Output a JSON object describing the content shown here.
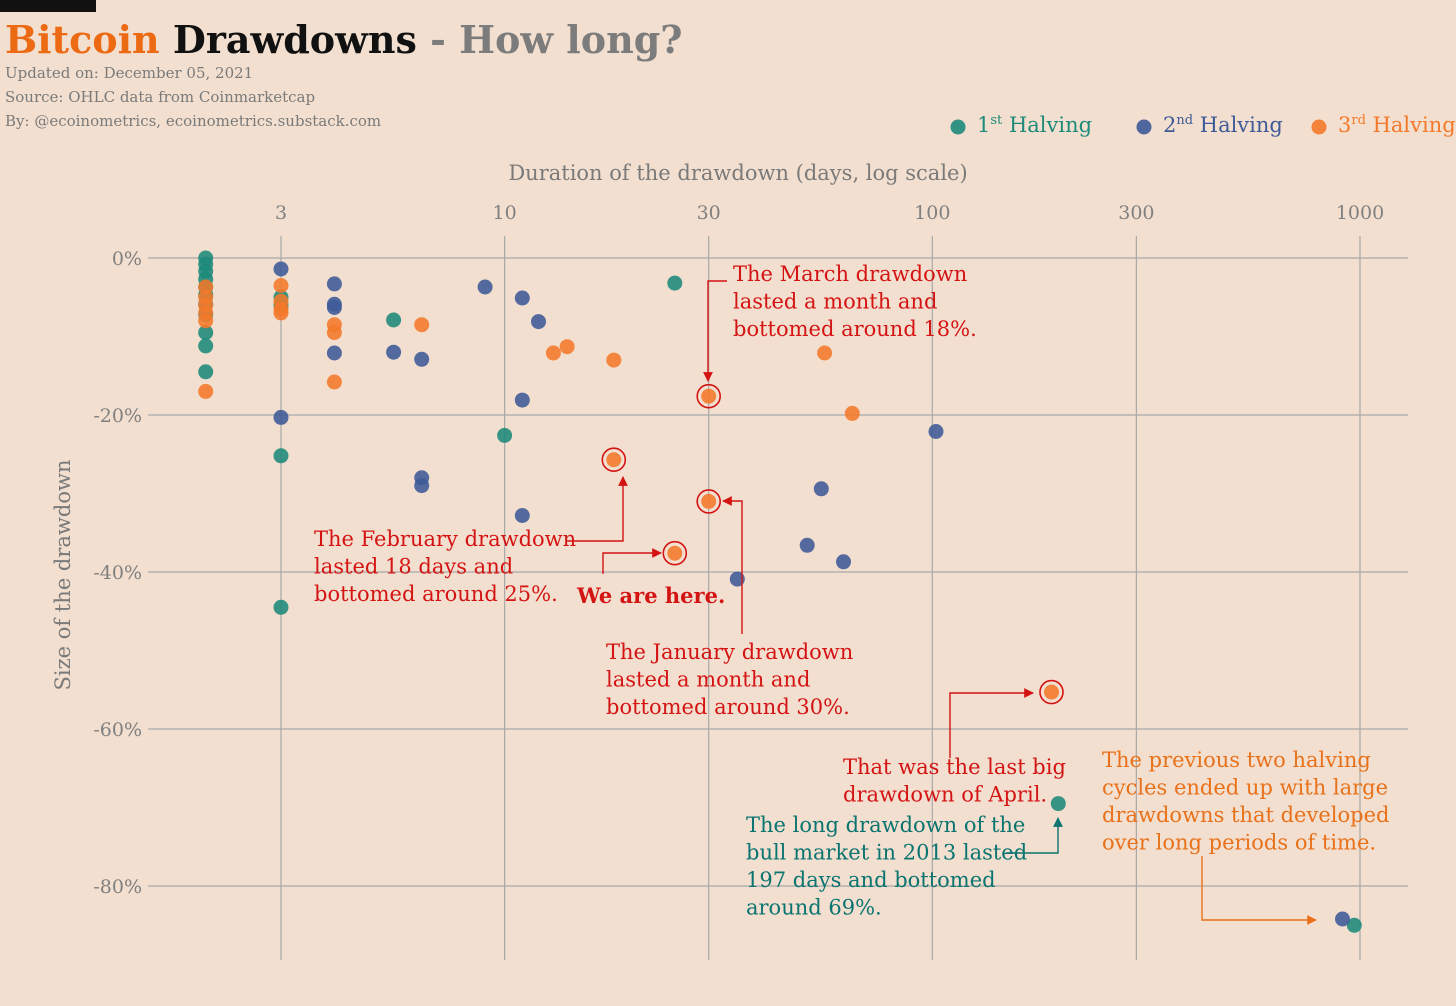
{
  "header": {
    "title_part1": "Bitcoin",
    "title_part2": "Drawdowns",
    "title_part3": "- How long?",
    "updated": "Updated on: December 05, 2021",
    "source": "Source: OHLC data from Coinmarketcap",
    "by": "By: @ecoinometrics, ecoinometrics.substack.com"
  },
  "colors": {
    "halving1": "#1d8a7a",
    "halving2": "#3e5a98",
    "halving3": "#f4792a",
    "annotation_red": "#d41313",
    "annotation_teal": "#0a7470",
    "annotation_orange": "#e8711a",
    "grid": "#a8a8a8",
    "background": "#f2dfcf"
  },
  "chart_data": {
    "type": "scatter",
    "title": "Bitcoin Drawdowns - How long?",
    "xlabel": "Duration of the drawdown (days, log scale)",
    "ylabel": "Size of the drawdown",
    "x_scale": "log",
    "x_ticks": [
      3,
      10,
      30,
      100,
      300,
      1000
    ],
    "x_tick_labels": [
      "3",
      "10",
      "30",
      "100",
      "300",
      "1000"
    ],
    "y_ticks": [
      0,
      -20,
      -40,
      -60,
      -80
    ],
    "y_tick_labels": [
      "0%",
      "-20%",
      "-40%",
      "-60%",
      "-80%"
    ],
    "xlim": [
      1.5,
      1300
    ],
    "ylim": [
      -89,
      5
    ],
    "grid": true,
    "legend_position": "top-right",
    "series": [
      {
        "name": "1st Halving",
        "legend_base": "1",
        "legend_sup": "st",
        "legend_rest": " Halving",
        "color_key": "halving1",
        "points": [
          [
            2,
            0
          ],
          [
            2,
            -0.8
          ],
          [
            2,
            -1.7
          ],
          [
            2,
            -2.7
          ],
          [
            2,
            -3.7
          ],
          [
            2,
            -4.7
          ],
          [
            2,
            -5.9
          ],
          [
            2,
            -7.2
          ],
          [
            2,
            -9.5
          ],
          [
            2,
            -11.2
          ],
          [
            2,
            -14.5
          ],
          [
            3,
            -5
          ],
          [
            3,
            -6
          ],
          [
            3,
            -25.2
          ],
          [
            3,
            -44.5
          ],
          [
            5.5,
            -7.9
          ],
          [
            10,
            -22.6
          ],
          [
            25,
            -3.2
          ],
          [
            197,
            -69.5
          ],
          [
            970,
            -85
          ]
        ]
      },
      {
        "name": "2nd Halving",
        "legend_base": "2",
        "legend_sup": "nd",
        "legend_rest": " Halving",
        "color_key": "halving2",
        "points": [
          [
            3,
            -1.4
          ],
          [
            3,
            -20.3
          ],
          [
            4,
            -3.3
          ],
          [
            4,
            -5.9
          ],
          [
            4,
            -6.3
          ],
          [
            4,
            -12.1
          ],
          [
            5.5,
            -12
          ],
          [
            6.4,
            -12.9
          ],
          [
            6.4,
            -28
          ],
          [
            6.4,
            -29
          ],
          [
            9,
            -3.7
          ],
          [
            11,
            -5.1
          ],
          [
            11,
            -18.1
          ],
          [
            11,
            -32.8
          ],
          [
            12,
            -8.1
          ],
          [
            35,
            -40.9
          ],
          [
            51,
            -36.6
          ],
          [
            55,
            -29.4
          ],
          [
            62,
            -38.7
          ],
          [
            102,
            -22.1
          ],
          [
            910,
            -84.2
          ]
        ]
      },
      {
        "name": "3rd Halving",
        "legend_base": "3",
        "legend_sup": "rd",
        "legend_rest": " Halving",
        "color_key": "halving3",
        "points": [
          [
            2,
            -3.7
          ],
          [
            2,
            -5
          ],
          [
            2,
            -6
          ],
          [
            2,
            -7
          ],
          [
            2,
            -8
          ],
          [
            2,
            -17
          ],
          [
            3,
            -3.5
          ],
          [
            3,
            -5.5
          ],
          [
            3,
            -6.5
          ],
          [
            3,
            -7
          ],
          [
            4,
            -8.5
          ],
          [
            4,
            -9.5
          ],
          [
            4,
            -15.8
          ],
          [
            6.4,
            -8.5
          ],
          [
            13,
            -12.1
          ],
          [
            14,
            -11.3
          ],
          [
            18,
            -13
          ],
          [
            18,
            -25.7
          ],
          [
            25,
            -37.6
          ],
          [
            30,
            -17.6
          ],
          [
            30,
            -31
          ],
          [
            56,
            -12.1
          ],
          [
            65,
            -19.8
          ],
          [
            190,
            -55.3
          ]
        ]
      }
    ],
    "highlighted_points": [
      [
        30,
        -17.6
      ],
      [
        18,
        -25.7
      ],
      [
        25,
        -37.6
      ],
      [
        30,
        -31
      ],
      [
        190,
        -55.3
      ]
    ],
    "annotations": [
      {
        "color_key": "annotation_red",
        "lines": [
          "The March drawdown",
          "lasted a month and",
          "bottomed around 18%."
        ]
      },
      {
        "color_key": "annotation_red",
        "lines": [
          "The February drawdown",
          "lasted 18 days and",
          "bottomed around 25%."
        ]
      },
      {
        "color_key": "annotation_red",
        "bold": true,
        "lines": [
          "We are here."
        ]
      },
      {
        "color_key": "annotation_red",
        "lines": [
          "The January drawdown",
          "lasted a month and",
          "bottomed around 30%."
        ]
      },
      {
        "color_key": "annotation_red",
        "lines": [
          "That was the last big",
          "drawdown of April."
        ]
      },
      {
        "color_key": "annotation_teal",
        "lines": [
          "The long drawdown of the",
          "bull market in 2013 lasted",
          "197 days and bottomed",
          "around 69%."
        ]
      },
      {
        "color_key": "annotation_orange",
        "lines": [
          "The previous two halving",
          "cycles ended up with large",
          "drawdowns that developed",
          "over long periods of time."
        ]
      }
    ]
  }
}
